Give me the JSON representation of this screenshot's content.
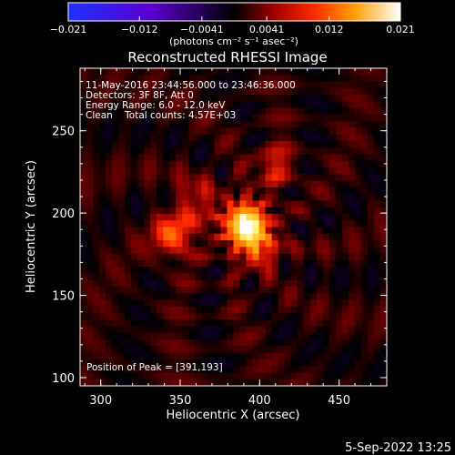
{
  "chart_data": {
    "type": "heatmap",
    "title": "Reconstructed RHESSI Image",
    "xlabel": "Heliocentric X (arcsec)",
    "ylabel": "Heliocentric Y (arcsec)",
    "xlim": [
      287,
      480
    ],
    "ylim": [
      95,
      288
    ],
    "x_ticks": [
      300,
      350,
      400,
      450
    ],
    "y_ticks": [
      100,
      150,
      200,
      250
    ],
    "colorbar": {
      "range": [
        -0.021,
        0.021
      ],
      "ticks": [
        -0.021,
        -0.012,
        -0.0041,
        0.0041,
        0.012,
        0.021
      ],
      "tick_labels": [
        "−0.021",
        "−0.012",
        "−0.0041",
        "0.0041",
        "0.012",
        "0.021"
      ],
      "unit_label": "(photons cm⁻² s⁻¹ asec⁻²)"
    },
    "annotations": {
      "time_range": "11-May-2016 23:44:56.000 to 23:46:36.000",
      "detectors": "Detectors: 3F 8F, Att 0",
      "energy_range": "Energy Range: 6.0 - 12.0 keV",
      "method_counts": "Clean    Total counts: 4.57E+03",
      "peak_position": "Position of Peak = [391,193]"
    },
    "peak": {
      "x": 391,
      "y": 193
    },
    "sources": [
      {
        "x": 391,
        "y": 193,
        "peak": 0.021
      },
      {
        "x": 346,
        "y": 186,
        "peak": 0.01
      },
      {
        "x": 400,
        "y": 178,
        "peak": 0.008
      },
      {
        "x": 360,
        "y": 207,
        "peak": 0.006
      },
      {
        "x": 409,
        "y": 228,
        "peak": 0.006
      }
    ],
    "colormap": [
      "#2030ff",
      "#5a00d0",
      "#000000",
      "#8a0000",
      "#ff2000",
      "#ff9a00",
      "#ffff70",
      "#ffffff"
    ]
  },
  "footer": {
    "date": "5-Sep-2022 13:25"
  }
}
